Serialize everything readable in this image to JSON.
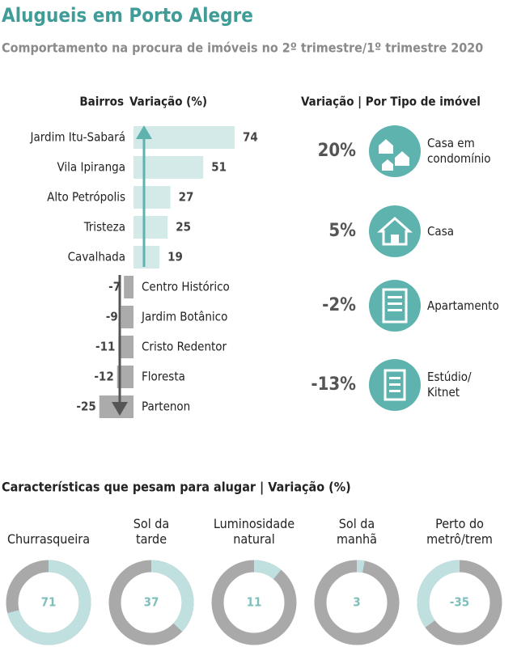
{
  "header": {
    "title": "Alugueis em Porto Alegre",
    "subtitle": "Comportamento na procura de imóveis no 2º trimestre/1º trimestre 2020"
  },
  "chart_data": [
    {
      "type": "bar",
      "orientation": "horizontal",
      "category_label": "Bairros",
      "value_label": "Variação (%)",
      "categories": [
        "Jardim Itu-Sabará",
        "Vila Ipiranga",
        "Alto Petrópolis",
        "Tristeza",
        "Cavalhada",
        "Centro Histórico",
        "Jardim Botânico",
        "Cristo Redentor",
        "Floresta",
        "Partenon"
      ],
      "values": [
        74,
        51,
        27,
        25,
        19,
        -7,
        -9,
        -11,
        -12,
        -25
      ],
      "positive_color": "#d3eae9",
      "negative_color": "#ababab",
      "xlim": [
        -30,
        80
      ]
    },
    {
      "type": "icon-list",
      "title": "Variação | Por Tipo de imóvel",
      "categories": [
        "Casa em\ncondomínio",
        "Casa",
        "Apartamento",
        "Estúdio/\nKitnet"
      ],
      "values": [
        20,
        5,
        -2,
        -13
      ],
      "value_labels": [
        "20%",
        "5%",
        "-2%",
        "-13%"
      ],
      "color": "#5fb3ae"
    },
    {
      "type": "donut",
      "title": "Características que pesam para alugar | Variação (%)",
      "categories": [
        "Churrasqueira",
        "Sol da\ntarde",
        "Luminosidade\nnatural",
        "Sol da\nmanhã",
        "Perto do\nmetrô/trem"
      ],
      "values": [
        71,
        37,
        11,
        3,
        -35
      ],
      "color": "#c0dfdf",
      "rest_color": "#a9a9a9",
      "ylim": [
        0,
        100
      ]
    }
  ]
}
